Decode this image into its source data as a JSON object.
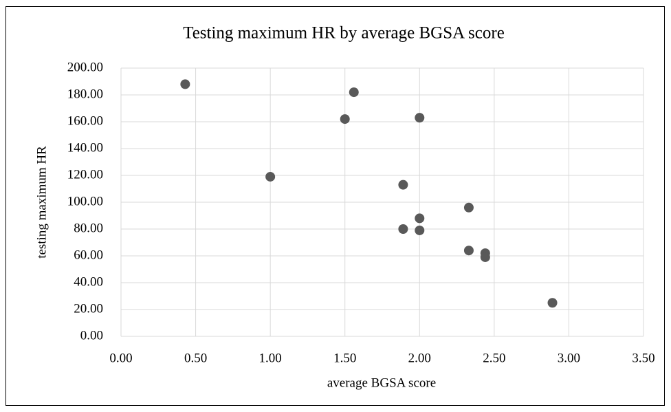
{
  "chart_data": {
    "type": "scatter",
    "title": "Testing maximum HR by average BGSA score",
    "x_label": "average BGSA score",
    "y_label": "testing maximum HR",
    "color": "#595959",
    "grid": true,
    "x": [
      0.43,
      1.0,
      1.5,
      1.56,
      2.0,
      1.89,
      1.89,
      2.0,
      2.0,
      2.33,
      2.33,
      2.44,
      2.44,
      2.89
    ],
    "values": [
      188,
      119,
      162,
      182,
      163,
      113,
      80,
      88,
      79,
      96,
      64,
      62,
      59,
      25
    ],
    "xlim": [
      0,
      3.5
    ],
    "ylim": [
      0,
      200
    ],
    "xticks": [
      {
        "value": 0,
        "label": "0.00"
      },
      {
        "value": 0.5,
        "label": "0.50"
      },
      {
        "value": 1,
        "label": "1.00"
      },
      {
        "value": 1.5,
        "label": "1.50"
      },
      {
        "value": 2,
        "label": "2.00"
      },
      {
        "value": 2.5,
        "label": "2.50"
      },
      {
        "value": 3,
        "label": "3.00"
      },
      {
        "value": 3.5,
        "label": "3.50"
      }
    ],
    "yticks": [
      {
        "value": 0,
        "label": "0.00"
      },
      {
        "value": 20,
        "label": "20.00"
      },
      {
        "value": 40,
        "label": "40.00"
      },
      {
        "value": 60,
        "label": "60.00"
      },
      {
        "value": 80,
        "label": "80.00"
      },
      {
        "value": 100,
        "label": "100.00"
      },
      {
        "value": 120,
        "label": "120.00"
      },
      {
        "value": 140,
        "label": "140.00"
      },
      {
        "value": 160,
        "label": "160.00"
      },
      {
        "value": 180,
        "label": "180.00"
      },
      {
        "value": 200,
        "label": "200.00"
      }
    ]
  }
}
